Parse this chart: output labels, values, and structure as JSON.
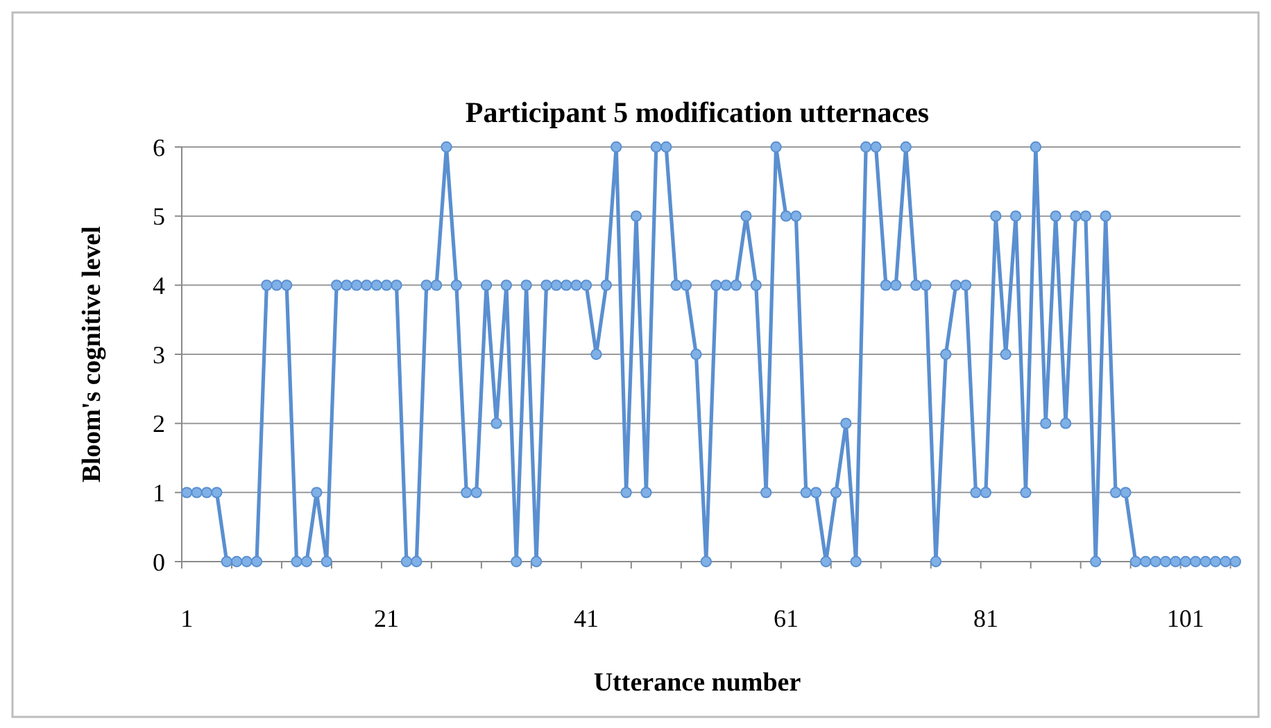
{
  "chart_data": {
    "type": "line",
    "title": "Participant 5 modification utternaces",
    "xlabel": "Utterance number",
    "ylabel": "Bloom's cognitive level",
    "categories": [
      "1",
      null,
      null,
      null,
      null,
      null,
      null,
      null,
      null,
      null,
      null,
      null,
      null,
      null,
      null,
      null,
      null,
      null,
      null,
      null,
      "21",
      null,
      null,
      null,
      null,
      null,
      null,
      null,
      null,
      null,
      null,
      null,
      null,
      null,
      null,
      null,
      null,
      null,
      null,
      null,
      "41",
      null,
      null,
      null,
      null,
      null,
      null,
      null,
      null,
      null,
      null,
      null,
      null,
      null,
      null,
      null,
      null,
      null,
      null,
      null,
      "61",
      null,
      null,
      null,
      null,
      null,
      null,
      null,
      null,
      null,
      null,
      null,
      null,
      null,
      null,
      null,
      null,
      null,
      null,
      null,
      "81",
      null,
      null,
      null,
      null,
      null,
      null,
      null,
      null,
      null,
      null,
      null,
      null,
      null,
      null,
      null,
      null,
      null,
      null,
      null,
      "101",
      null,
      null,
      null,
      null,
      null
    ],
    "series": [
      {
        "color": "#5a8fd0",
        "values": [
          1,
          1,
          1,
          1,
          0,
          0,
          0,
          0,
          4,
          4,
          4,
          0,
          0,
          1,
          0,
          4,
          4,
          4,
          4,
          4,
          4,
          4,
          0,
          0,
          4,
          4,
          6,
          4,
          1,
          1,
          4,
          2,
          4,
          0,
          4,
          0,
          4,
          4,
          4,
          4,
          4,
          3,
          4,
          6,
          1,
          5,
          1,
          6,
          6,
          4,
          4,
          3,
          0,
          4,
          4,
          4,
          5,
          4,
          1,
          6,
          5,
          5,
          1,
          1,
          0,
          1,
          2,
          0,
          6,
          6,
          4,
          4,
          6,
          4,
          4,
          0,
          3,
          4,
          4,
          1,
          1,
          5,
          3,
          5,
          1,
          6,
          2,
          5,
          2,
          5,
          5,
          0,
          5,
          1,
          1,
          0,
          0,
          0,
          0,
          0,
          0,
          0,
          0,
          0,
          0,
          0
        ]
      }
    ],
    "ylim": [
      0,
      6
    ],
    "yticks": [
      0,
      1,
      2,
      3,
      4,
      5,
      6
    ],
    "grid": "y",
    "marker": "circle",
    "line_style": "solid"
  }
}
